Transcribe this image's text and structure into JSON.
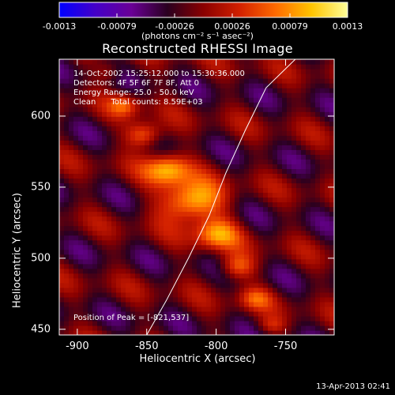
{
  "colorbar": {
    "tick_labels": [
      "-0.0013",
      "-0.00079",
      "-0.00026",
      "0.00026",
      "0.00079",
      "0.0013"
    ],
    "units": "(photons cm⁻² s⁻¹ asec⁻²)"
  },
  "info": {
    "time": "14-Oct-2002 15:25:12.000 to 15:30:36.000",
    "detectors": "Detectors: 4F 5F 6F 7F 8F, Att 0",
    "energy": "Energy Range: 25.0 - 50.0 keV",
    "clean": "Clean      Total counts: 8.59E+03",
    "peak": "Position of Peak = [-821,537]"
  },
  "footer": {
    "date": "13-Apr-2013 02:41"
  },
  "chart_data": {
    "type": "heatmap",
    "title": "Reconstructed RHESSI Image",
    "xlabel": "Heliocentric X (arcsec)",
    "ylabel": "Heliocentric Y (arcsec)",
    "xlim": [
      -913,
      -715
    ],
    "ylim": [
      446,
      640
    ],
    "x_ticks": [
      -900,
      -850,
      -800,
      -750
    ],
    "y_ticks": [
      450,
      500,
      550,
      600
    ],
    "x_tick_labels": [
      "-900",
      "-850",
      "-800",
      "-750"
    ],
    "y_tick_labels": [
      "450",
      "500",
      "550",
      "600"
    ],
    "colorbar_range": [
      -0.0013,
      0.0013
    ],
    "colormap": [
      "#0000ff",
      "#4400c8",
      "#6a0096",
      "#2a0020",
      "#8a0000",
      "#d22000",
      "#ff6a00",
      "#ffc400",
      "#ffff9a"
    ],
    "peak": [
      -821,
      537
    ],
    "limb": [
      [
        -850,
        446
      ],
      [
        -836,
        470
      ],
      [
        -820,
        500
      ],
      [
        -805,
        530
      ],
      [
        -793,
        560
      ],
      [
        -779,
        590
      ],
      [
        -764,
        620
      ],
      [
        -743,
        640
      ]
    ],
    "blobs": [
      {
        "x": -818,
        "y": 540,
        "sx": 22,
        "sy": 14,
        "amp": 0.0013
      },
      {
        "x": -835,
        "y": 563,
        "sx": 16,
        "sy": 11,
        "amp": 0.00105
      },
      {
        "x": -800,
        "y": 517,
        "sx": 16,
        "sy": 11,
        "amp": 0.0009
      },
      {
        "x": -852,
        "y": 587,
        "sx": 13,
        "sy": 9,
        "amp": 0.0009
      },
      {
        "x": -785,
        "y": 494,
        "sx": 13,
        "sy": 9,
        "amp": 0.00075
      },
      {
        "x": -866,
        "y": 608,
        "sx": 11,
        "sy": 8,
        "amp": 0.00065
      },
      {
        "x": -772,
        "y": 472,
        "sx": 12,
        "sy": 8,
        "amp": 0.00055
      },
      {
        "x": -877,
        "y": 631,
        "sx": 10,
        "sy": 7,
        "amp": 0.00035
      },
      {
        "x": -760,
        "y": 453,
        "sx": 10,
        "sy": 6,
        "amp": 0.0004
      }
    ]
  }
}
